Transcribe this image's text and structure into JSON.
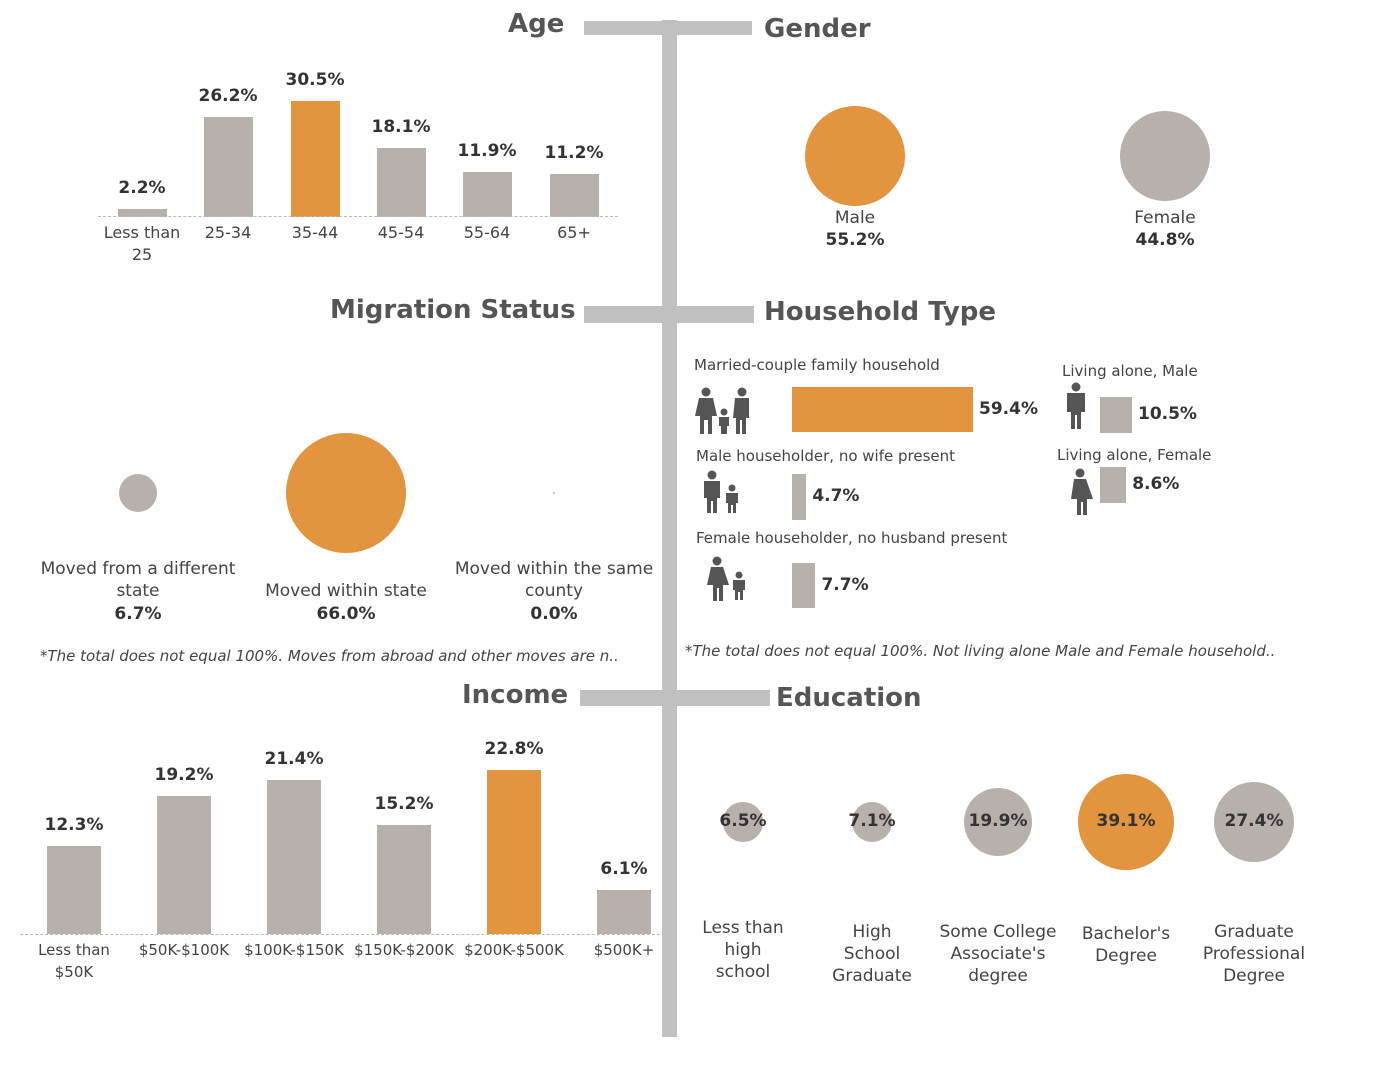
{
  "sections": {
    "age": "Age",
    "gender": "Gender",
    "migration": "Migration Status",
    "household": "Household Type",
    "income": "Income",
    "education": "Education"
  },
  "colors": {
    "highlight": "#e3943f",
    "base": "#b8b0ad",
    "spine": "#c0c0c0"
  },
  "chart_data": [
    {
      "type": "bar",
      "name": "age",
      "categories": [
        "Less than 25",
        "25-34",
        "35-44",
        "45-54",
        "55-64",
        "65+"
      ],
      "values": [
        2.2,
        26.2,
        30.5,
        18.1,
        11.9,
        11.2
      ],
      "value_labels": [
        "2.2%",
        "26.2%",
        "30.5%",
        "18.1%",
        "11.9%",
        "11.2%"
      ],
      "highlight_index": 2
    },
    {
      "type": "bubble",
      "name": "gender",
      "categories": [
        "Male",
        "Female"
      ],
      "values": [
        55.2,
        44.8
      ],
      "value_labels": [
        "55.2%",
        "44.8%"
      ],
      "highlight_index": 0
    },
    {
      "type": "bubble",
      "name": "migration",
      "categories": [
        "Moved from a different state",
        "Moved within state",
        "Moved within the same county"
      ],
      "values": [
        6.7,
        66.0,
        0.0
      ],
      "value_labels": [
        "6.7%",
        "66.0%",
        "0.0%"
      ],
      "highlight_index": 1,
      "note": "*The total does not equal 100%. Moves from abroad and other moves are n.."
    },
    {
      "type": "bar",
      "name": "household",
      "categories": [
        "Married-couple family household",
        "Male householder, no wife present",
        "Female householder, no husband present",
        "Living alone, Male",
        "Living alone, Female"
      ],
      "values": [
        59.4,
        4.7,
        7.7,
        10.5,
        8.6
      ],
      "value_labels": [
        "59.4%",
        "4.7%",
        "7.7%",
        "10.5%",
        "8.6%"
      ],
      "highlight_index": 0,
      "note": "*The total does not equal 100%. Not living alone Male and Female household.."
    },
    {
      "type": "bar",
      "name": "income",
      "categories": [
        "Less than $50K",
        "$50K-$100K",
        "$100K-$150K",
        "$150K-$200K",
        "$200K-$500K",
        "$500K+"
      ],
      "values": [
        12.3,
        19.2,
        21.4,
        15.2,
        22.8,
        6.1
      ],
      "value_labels": [
        "12.3%",
        "19.2%",
        "21.4%",
        "15.2%",
        "22.8%",
        "6.1%"
      ],
      "highlight_index": 4
    },
    {
      "type": "bubble",
      "name": "education",
      "categories": [
        "Less than high school",
        "High School Graduate",
        "Some College Associate's degree",
        "Bachelor's Degree",
        "Graduate Professional Degree"
      ],
      "values": [
        6.5,
        7.1,
        19.9,
        39.1,
        27.4
      ],
      "value_labels": [
        "6.5%",
        "7.1%",
        "19.9%",
        "39.1%",
        "27.4%"
      ],
      "highlight_index": 3
    }
  ]
}
